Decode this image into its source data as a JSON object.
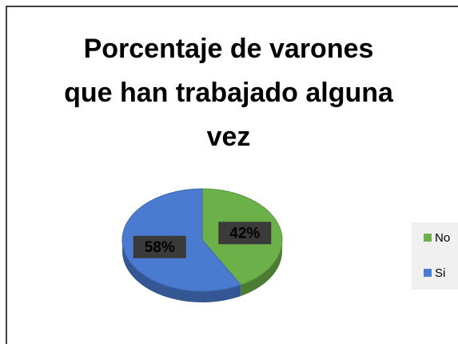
{
  "chart_data": {
    "type": "pie",
    "title": "Porcentaje de varones que han trabajado alguna vez",
    "categories": [
      "No",
      "Si"
    ],
    "values": [
      42,
      58
    ],
    "value_labels": [
      "42%",
      "58%"
    ],
    "colors": [
      "#6cb04a",
      "#4a7bd0"
    ],
    "legend": "right"
  }
}
